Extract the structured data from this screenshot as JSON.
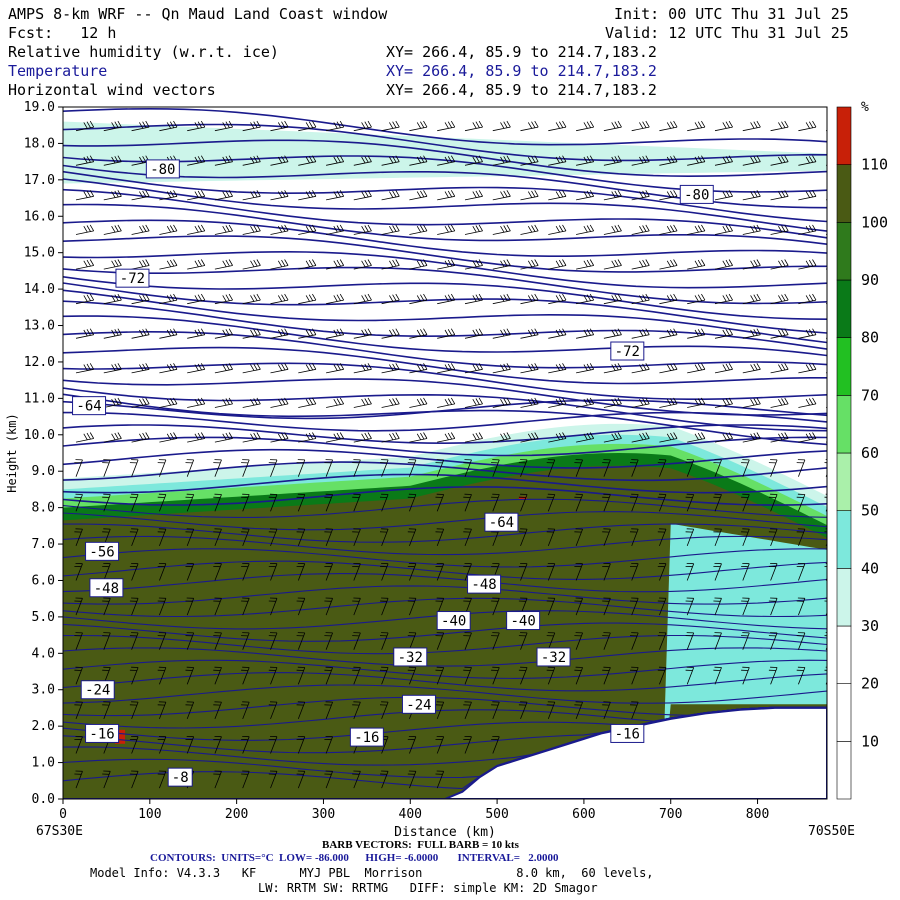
{
  "header": {
    "title": "AMPS 8-km WRF -- Qn Maud Land Coast window",
    "init": "Init: 00 UTC Thu 31 Jul 25",
    "fcst": "Fcst:   12 h",
    "valid": "Valid: 12 UTC Thu 31 Jul 25",
    "fields": [
      {
        "name": "Relative humidity (w.r.t. ice)",
        "xy": "XY= 266.4, 85.9 to 214.7,183.2"
      },
      {
        "name": "Temperature",
        "xy": "XY= 266.4, 85.9 to 214.7,183.2"
      },
      {
        "name": "Horizontal wind vectors",
        "xy": "XY= 266.4, 85.9 to 214.7,183.2"
      }
    ]
  },
  "chart_data": {
    "type": "heatmap",
    "xlabel": "Distance (km)",
    "ylabel": "Height (km)",
    "xlim": [
      0,
      880
    ],
    "ylim": [
      0,
      19
    ],
    "x_ticks": [
      0,
      100,
      200,
      300,
      400,
      500,
      600,
      700,
      800
    ],
    "y_ticks": [
      "0.0",
      "1.0",
      "2.0",
      "3.0",
      "4.0",
      "5.0",
      "6.0",
      "7.0",
      "8.0",
      "9.0",
      "10.0",
      "11.0",
      "12.0",
      "13.0",
      "14.0",
      "15.0",
      "16.0",
      "17.0",
      "18.0",
      "19.0"
    ],
    "left_endpoint": "67S30E",
    "right_endpoint": "70S50E",
    "colorbar": {
      "unit": "%",
      "levels": [
        10,
        20,
        30,
        40,
        50,
        60,
        70,
        80,
        90,
        100,
        110
      ],
      "colors": [
        "#ffffff",
        "#ffffff",
        "#ffffff",
        "#ccf5ea",
        "#7de8dc",
        "#aaf0aa",
        "#66e066",
        "#22c022",
        "#0a7a18",
        "#2f7a1c",
        "#4a5a14",
        "#c82008"
      ]
    },
    "contour_labels": [
      {
        "x": 115,
        "y": 17.3,
        "text": "-80"
      },
      {
        "x": 730,
        "y": 16.6,
        "text": "-80"
      },
      {
        "x": 80,
        "y": 14.3,
        "text": "-72"
      },
      {
        "x": 650,
        "y": 12.3,
        "text": "-72"
      },
      {
        "x": 30,
        "y": 10.8,
        "text": "-64"
      },
      {
        "x": 505,
        "y": 7.6,
        "text": "-64"
      },
      {
        "x": 45,
        "y": 6.8,
        "text": "-56"
      },
      {
        "x": 50,
        "y": 5.8,
        "text": "-48"
      },
      {
        "x": 485,
        "y": 5.9,
        "text": "-48"
      },
      {
        "x": 450,
        "y": 4.9,
        "text": "-40"
      },
      {
        "x": 530,
        "y": 4.9,
        "text": "-40"
      },
      {
        "x": 400,
        "y": 3.9,
        "text": "-32"
      },
      {
        "x": 565,
        "y": 3.9,
        "text": "-32"
      },
      {
        "x": 40,
        "y": 3.0,
        "text": "-24"
      },
      {
        "x": 410,
        "y": 2.6,
        "text": "-24"
      },
      {
        "x": 45,
        "y": 1.8,
        "text": "-16"
      },
      {
        "x": 350,
        "y": 1.7,
        "text": "-16"
      },
      {
        "x": 650,
        "y": 1.8,
        "text": "-16"
      },
      {
        "x": 135,
        "y": 0.6,
        "text": "-8"
      }
    ],
    "terrain_km": [
      [
        0,
        0
      ],
      [
        440,
        0
      ],
      [
        460,
        0.2
      ],
      [
        480,
        0.6
      ],
      [
        500,
        0.9
      ],
      [
        540,
        1.2
      ],
      [
        580,
        1.5
      ],
      [
        620,
        1.8
      ],
      [
        660,
        2.0
      ],
      [
        700,
        2.2
      ],
      [
        740,
        2.35
      ],
      [
        780,
        2.45
      ],
      [
        820,
        2.5
      ],
      [
        880,
        2.5
      ]
    ]
  },
  "footer": {
    "barb": "BARB VECTORS:  FULL BARB = 10 kts",
    "contours": "CONTOURS:  UNITS=°C  LOW= -86.000      HIGH= -6.0000       INTERVAL=   2.0000",
    "model1": "Model Info: V4.3.3   KF      MYJ PBL  Morrison             8.0 km,  60 levels,",
    "model2": "LW: RRTM SW: RRTMG   DIFF: simple KM: 2D Smagor"
  },
  "colors": {
    "contour": "#1a1a8c",
    "terrain": "#1a1a8c",
    "barb": "#000000"
  }
}
